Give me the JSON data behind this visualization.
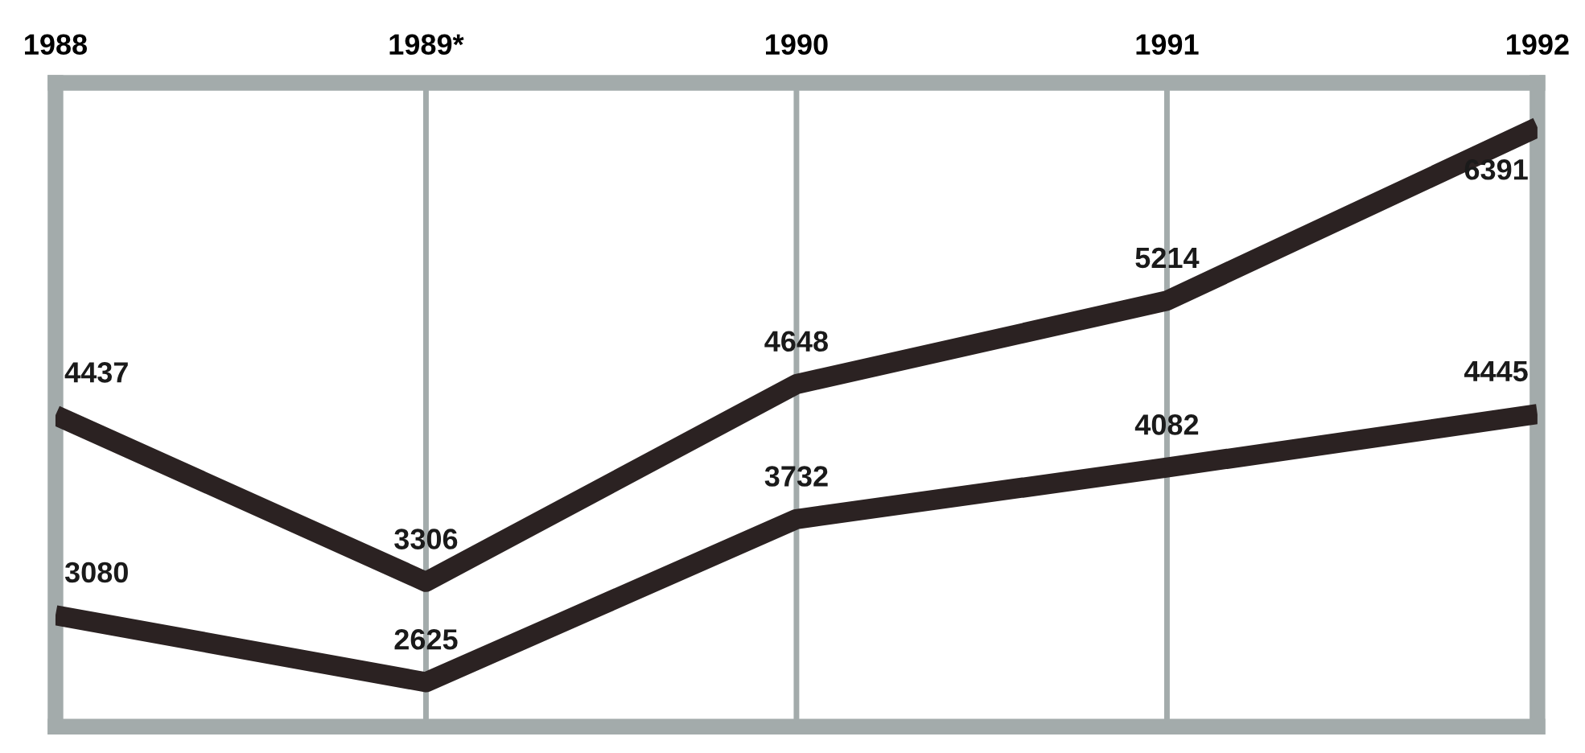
{
  "chart_data": {
    "type": "line",
    "categories": [
      "1988",
      "1989*",
      "1990",
      "1991",
      "1992"
    ],
    "series": [
      {
        "color": "#2b2222",
        "values": [
          4437,
          3306,
          4648,
          5214,
          6391
        ]
      },
      {
        "color": "#2b2222",
        "values": [
          3080,
          2625,
          3732,
          4082,
          4445
        ]
      }
    ],
    "data_labels": true,
    "grid": "x",
    "legend": false,
    "tick_labels": "x",
    "marker": "none",
    "line_style": "solid"
  }
}
